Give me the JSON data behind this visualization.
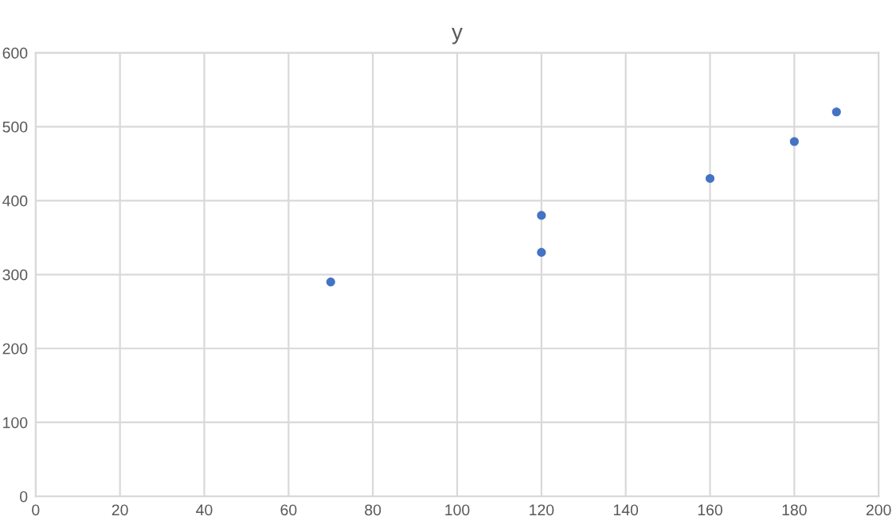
{
  "chart_data": {
    "type": "scatter",
    "title": "y",
    "x": [
      70,
      120,
      120,
      160,
      180,
      190
    ],
    "values": [
      290,
      380,
      330,
      430,
      480,
      520
    ],
    "color": "#4472c4",
    "marker": "circle",
    "xlim": [
      0,
      200
    ],
    "xticks": [
      0,
      20,
      40,
      60,
      80,
      100,
      120,
      140,
      160,
      180,
      200
    ],
    "ylim": [
      0,
      600
    ],
    "yticks": [
      0,
      100,
      200,
      300,
      400,
      500,
      600
    ],
    "grid": true,
    "legend": false
  }
}
